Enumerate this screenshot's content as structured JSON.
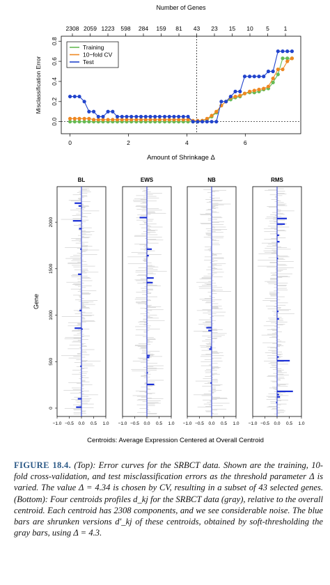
{
  "top_chart": {
    "top_axis_label": "Number of Genes",
    "top_ticks": [
      "2308",
      "2059",
      "1223",
      "598",
      "284",
      "159",
      "81",
      "43",
      "23",
      "15",
      "10",
      "5",
      "1"
    ],
    "xlabel": "Amount of Shrinkage Δ",
    "ylabel": "Misclassification Error",
    "x_ticks": [
      "0",
      "2",
      "4",
      "6"
    ],
    "y_ticks": [
      "0.0",
      "0.2",
      "0.4",
      "0.6",
      "0.8"
    ],
    "legend": [
      {
        "label": "Training",
        "color": "#66bb55"
      },
      {
        "label": "10−fold CV",
        "color": "#ee8822"
      },
      {
        "label": "Test",
        "color": "#2244cc"
      }
    ]
  },
  "chart_data": [
    {
      "type": "line",
      "xlabel": "Amount of Shrinkage Δ",
      "ylabel": "Misclassification Error",
      "xlim": [
        -0.3,
        7.9
      ],
      "ylim": [
        -0.12,
        0.85
      ],
      "x": [
        0,
        0.16,
        0.32,
        0.49,
        0.65,
        0.81,
        0.97,
        1.13,
        1.3,
        1.46,
        1.62,
        1.78,
        1.94,
        2.1,
        2.27,
        2.43,
        2.59,
        2.75,
        2.91,
        3.07,
        3.24,
        3.4,
        3.56,
        3.72,
        3.88,
        4.04,
        4.21,
        4.37,
        4.53,
        4.69,
        4.85,
        5.01,
        5.18,
        5.34,
        5.5,
        5.66,
        5.82,
        5.98,
        6.15,
        6.31,
        6.47,
        6.63,
        6.79,
        6.95,
        7.12,
        7.28,
        7.44,
        7.6
      ],
      "series": [
        {
          "name": "Training",
          "color": "#66bb55",
          "values": [
            0.0,
            0.0,
            0.0,
            0.0,
            0.0,
            0.0,
            0.0,
            0.0,
            0.0,
            0.0,
            0.0,
            0.0,
            0.0,
            0.0,
            0.0,
            0.0,
            0.0,
            0.0,
            0.0,
            0.0,
            0.0,
            0.0,
            0.0,
            0.0,
            0.0,
            0.0,
            0.0,
            0.0,
            0.01,
            0.02,
            0.05,
            0.09,
            0.16,
            0.2,
            0.22,
            0.24,
            0.25,
            0.28,
            0.29,
            0.29,
            0.3,
            0.32,
            0.33,
            0.39,
            0.47,
            0.63,
            0.63,
            0.63
          ]
        },
        {
          "name": "10−fold CV",
          "color": "#ee8822",
          "values": [
            0.03,
            0.03,
            0.03,
            0.03,
            0.03,
            0.02,
            0.02,
            0.02,
            0.02,
            0.02,
            0.02,
            0.02,
            0.02,
            0.02,
            0.02,
            0.02,
            0.02,
            0.02,
            0.02,
            0.02,
            0.02,
            0.02,
            0.02,
            0.02,
            0.02,
            0.02,
            0.01,
            0.01,
            0.01,
            0.03,
            0.06,
            0.1,
            0.16,
            0.2,
            0.24,
            0.25,
            0.26,
            0.28,
            0.3,
            0.31,
            0.32,
            0.33,
            0.35,
            0.43,
            0.52,
            0.52,
            0.6,
            0.63
          ]
        },
        {
          "name": "Test",
          "color": "#2244cc",
          "values": [
            0.25,
            0.25,
            0.25,
            0.2,
            0.1,
            0.1,
            0.05,
            0.05,
            0.1,
            0.1,
            0.05,
            0.05,
            0.05,
            0.05,
            0.05,
            0.05,
            0.05,
            0.05,
            0.05,
            0.05,
            0.05,
            0.05,
            0.05,
            0.05,
            0.05,
            0.05,
            0.0,
            0.0,
            0.0,
            0.0,
            0.0,
            0.0,
            0.2,
            0.2,
            0.25,
            0.3,
            0.3,
            0.45,
            0.45,
            0.45,
            0.45,
            0.45,
            0.5,
            0.5,
            0.7,
            0.7,
            0.7,
            0.7
          ]
        }
      ],
      "annotations": {
        "vertical_line_x": 4.34,
        "horizontal_line_y": 0.0
      }
    },
    {
      "type": "bar",
      "orientation": "horizontal",
      "panels": [
        "BL",
        "EWS",
        "NB",
        "RMS"
      ],
      "xlim": [
        -1.0,
        1.0
      ],
      "ylim": [
        0,
        2308
      ],
      "xlabel": "Centroids: Average Expression Centered at Overall Centroid",
      "ylabel": "Gene",
      "x_ticks": [
        "−1.0",
        "−0.5",
        "0.0",
        "0.5",
        "1.0"
      ],
      "y_ticks": [
        "0",
        "500",
        "1000",
        "1500",
        "2000"
      ],
      "shrunken_centroids": [
        {
          "panel": "BL",
          "bars": [
            {
              "gene": 2205,
              "value": -0.28
            },
            {
              "gene": 2175,
              "value": -0.12
            },
            {
              "gene": 2155,
              "value": 0.0
            },
            {
              "gene": 2015,
              "value": -0.35
            },
            {
              "gene": 1930,
              "value": -0.1
            },
            {
              "gene": 1710,
              "value": -0.05
            },
            {
              "gene": 1440,
              "value": -0.14
            },
            {
              "gene": 1050,
              "value": -0.08
            },
            {
              "gene": 860,
              "value": -0.28
            },
            {
              "gene": 850,
              "value": 0.05
            },
            {
              "gene": 450,
              "value": -0.05
            },
            {
              "gene": 100,
              "value": -0.15
            },
            {
              "gene": 10,
              "value": -0.22
            }
          ]
        },
        {
          "panel": "EWS",
          "bars": [
            {
              "gene": 2050,
              "value": -0.3
            },
            {
              "gene": 1710,
              "value": 0.2
            },
            {
              "gene": 1640,
              "value": 0.08
            },
            {
              "gene": 1400,
              "value": 0.28
            },
            {
              "gene": 1350,
              "value": 0.24
            },
            {
              "gene": 565,
              "value": 0.12
            },
            {
              "gene": 545,
              "value": 0.1
            },
            {
              "gene": 380,
              "value": 0.04
            },
            {
              "gene": 255,
              "value": 0.3
            }
          ]
        },
        {
          "panel": "NB",
          "bars": [
            {
              "gene": 865,
              "value": -0.22
            },
            {
              "gene": 835,
              "value": -0.14
            },
            {
              "gene": 655,
              "value": -0.05
            },
            {
              "gene": 635,
              "value": -0.1
            },
            {
              "gene": 270,
              "value": -0.05
            }
          ]
        },
        {
          "panel": "RMS",
          "bars": [
            {
              "gene": 2040,
              "value": 0.4
            },
            {
              "gene": 1980,
              "value": 0.32
            },
            {
              "gene": 1860,
              "value": 0.08
            },
            {
              "gene": 1790,
              "value": 0.1
            },
            {
              "gene": 1610,
              "value": 0.04
            },
            {
              "gene": 1040,
              "value": 0.06
            },
            {
              "gene": 960,
              "value": 0.08
            },
            {
              "gene": 550,
              "value": 0.07
            },
            {
              "gene": 510,
              "value": 0.52
            },
            {
              "gene": 180,
              "value": 0.65
            },
            {
              "gene": 145,
              "value": 0.08
            },
            {
              "gene": 120,
              "value": 0.12
            },
            {
              "gene": 60,
              "value": -0.04
            }
          ]
        }
      ]
    }
  ],
  "caption": {
    "label": "FIGURE 18.4.",
    "text": "(Top): Error curves for the SRBCT data. Shown are the training, 10-fold cross-validation, and test misclassification errors as the threshold parameter Δ is varied. The value Δ = 4.34 is chosen by CV, resulting in a subset of 43 selected genes. (Bottom): Four centroids profiles d_kj for the SRBCT data (gray), relative to the overall centroid. Each centroid has 2308 components, and we see considerable noise. The blue bars are shrunken versions d′_kj of these centroids, obtained by soft-thresholding the gray bars, using Δ = 4.3."
  }
}
